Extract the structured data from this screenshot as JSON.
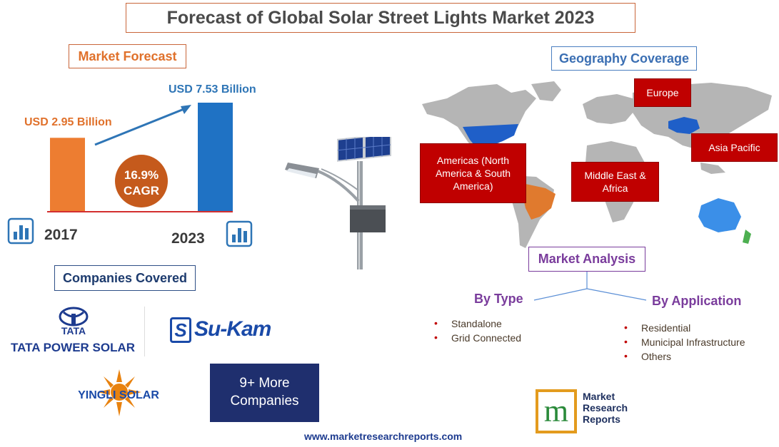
{
  "title": "Forecast of Global Solar Street Lights Market 2023",
  "market_forecast": {
    "heading": "Market Forecast",
    "value_2017_label": "USD 2.95 Billion",
    "value_2023_label": "USD 7.53 Billion",
    "cagr_value": "16.9%",
    "cagr_label": "CAGR",
    "year_start": "2017",
    "year_end": "2023",
    "bar_colors": {
      "start": "#ed7d31",
      "end": "#1f72c4"
    }
  },
  "chart_data": {
    "type": "bar",
    "categories": [
      "2017",
      "2023"
    ],
    "values": [
      2.95,
      7.53
    ],
    "ylim": [
      0,
      8
    ]
  },
  "geography": {
    "heading": "Geography Coverage",
    "regions": {
      "europe": "Europe",
      "asia_pacific": "Asia Pacific",
      "americas": "Americas (North America & South America)",
      "mea": "Middle East & Africa"
    }
  },
  "companies": {
    "heading": "Companies Covered",
    "tata_brand": "TATA",
    "tata_name": "TATA POWER SOLAR",
    "sukam": "Su-Kam",
    "yingli": "YINGLI SOLAR",
    "more": "9+ More Companies"
  },
  "market_analysis": {
    "heading": "Market Analysis",
    "by_type": {
      "label": "By Type",
      "items": [
        "Standalone",
        "Grid Connected"
      ]
    },
    "by_application": {
      "label": "By Application",
      "items": [
        "Residential",
        "Municipal Infrastructure",
        "Others"
      ]
    }
  },
  "brand": {
    "line1": "Market",
    "line2": "Research",
    "line3": "Reports",
    "mark": "m"
  },
  "website": "www.marketresearchreports.com",
  "colors": {
    "region_red": "#c00000",
    "accent_orange": "#e0712b",
    "accent_blue": "#3b6fb3",
    "accent_purple": "#7a3c9c",
    "map_grey": "#b5b5b5"
  }
}
